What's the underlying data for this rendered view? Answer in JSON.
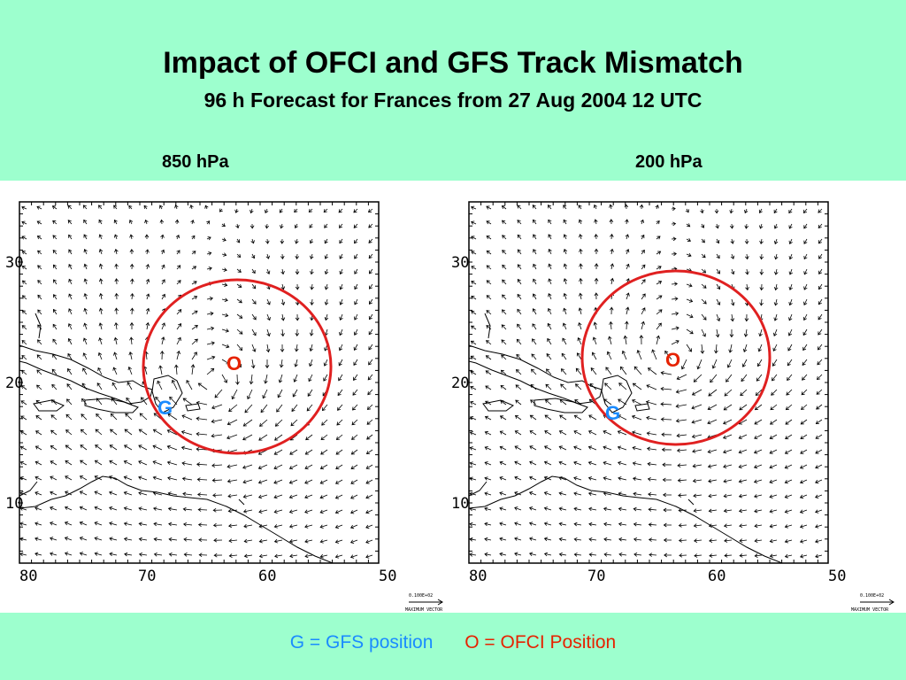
{
  "header": {
    "title": "Impact of OFCI and GFS Track Mismatch",
    "subtitle": "96 h Forecast for Frances from 27 Aug 2004 12 UTC"
  },
  "panels": [
    {
      "label": "850 hPa",
      "x_ticks": [
        "80",
        "70",
        "60",
        "50"
      ],
      "y_ticks": [
        "30",
        "20",
        "10"
      ],
      "vector_key": [
        "0.100E+02",
        "MAXIMUM VECTOR"
      ],
      "marker_o": "O",
      "marker_g": "G"
    },
    {
      "label": "200 hPa",
      "x_ticks": [
        "80",
        "70",
        "60",
        "50"
      ],
      "y_ticks": [
        "30",
        "20",
        "10"
      ],
      "vector_key": [
        "0.100E+02",
        "MAXIMUM VECTOR"
      ],
      "marker_o": "O",
      "marker_g": "G"
    }
  ],
  "legend": {
    "gfs": "G = GFS position",
    "ofci": "O = OFCI Position"
  },
  "colors": {
    "background": "#9dffce",
    "circle": "#e02020",
    "gfs": "#1a8bff",
    "ofci": "#e62200"
  }
}
